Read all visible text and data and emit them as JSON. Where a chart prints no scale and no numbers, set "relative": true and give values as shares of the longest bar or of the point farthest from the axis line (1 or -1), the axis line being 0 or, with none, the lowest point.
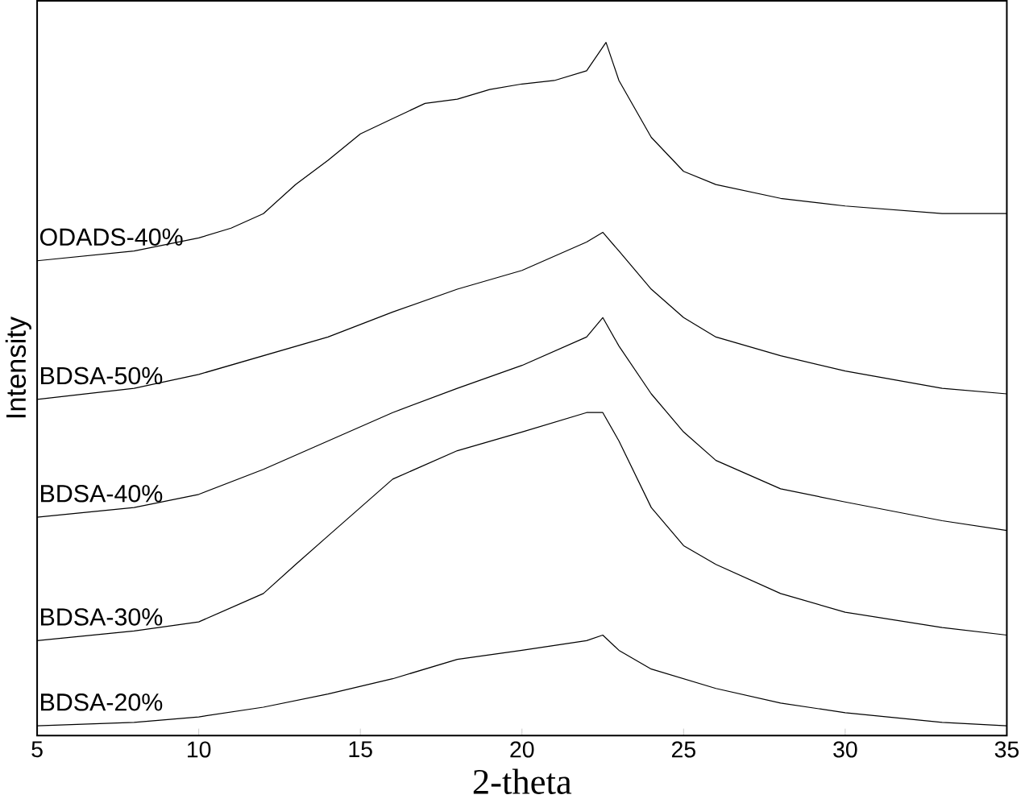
{
  "chart_data": {
    "type": "line",
    "xlabel": "2-theta",
    "ylabel": "Intensity",
    "relative": true,
    "xlim": [
      5,
      35
    ],
    "xticks": [
      5,
      10,
      15,
      20,
      25,
      30,
      35
    ],
    "legend": false,
    "marker": "none",
    "line_style": "solid",
    "series": [
      {
        "name": "ODADS-40%",
        "color": "#000000",
        "x": [
          5,
          8,
          10,
          11,
          12,
          13,
          14,
          15,
          16,
          17,
          18,
          19,
          20,
          21,
          22,
          22.6,
          23,
          24,
          25,
          26,
          28,
          30,
          33,
          35
        ],
        "values": [
          0.685,
          0.699,
          0.718,
          0.732,
          0.753,
          0.795,
          0.83,
          0.868,
          0.89,
          0.912,
          0.918,
          0.932,
          0.94,
          0.945,
          0.959,
          1,
          0.945,
          0.863,
          0.814,
          0.795,
          0.775,
          0.764,
          0.753,
          0.753
        ]
      },
      {
        "name": "BDSA-50%",
        "color": "#000000",
        "x": [
          5,
          8,
          10,
          12,
          14,
          16,
          18,
          20,
          22,
          22.5,
          23,
          24,
          25,
          26,
          28,
          30,
          33,
          35
        ],
        "values": [
          0.485,
          0.501,
          0.521,
          0.548,
          0.575,
          0.611,
          0.644,
          0.671,
          0.712,
          0.726,
          0.699,
          0.644,
          0.603,
          0.575,
          0.548,
          0.526,
          0.501,
          0.493
        ]
      },
      {
        "name": "BDSA-40%",
        "color": "#000000",
        "x": [
          5,
          8,
          10,
          12,
          14,
          16,
          18,
          20,
          22,
          22.5,
          23,
          24,
          25,
          26,
          28,
          30,
          33,
          35
        ],
        "values": [
          0.315,
          0.329,
          0.348,
          0.384,
          0.425,
          0.466,
          0.501,
          0.534,
          0.575,
          0.603,
          0.562,
          0.493,
          0.438,
          0.397,
          0.356,
          0.337,
          0.31,
          0.296
        ]
      },
      {
        "name": "BDSA-30%",
        "color": "#000000",
        "x": [
          5,
          8,
          10,
          12,
          13,
          14,
          15,
          16,
          18,
          20,
          21,
          22,
          22.5,
          23,
          24,
          25,
          26,
          28,
          30,
          33,
          35
        ],
        "values": [
          0.137,
          0.151,
          0.164,
          0.205,
          0.247,
          0.288,
          0.329,
          0.37,
          0.411,
          0.438,
          0.452,
          0.466,
          0.466,
          0.425,
          0.329,
          0.274,
          0.247,
          0.205,
          0.178,
          0.156,
          0.145
        ]
      },
      {
        "name": "BDSA-20%",
        "color": "#000000",
        "x": [
          5,
          8,
          10,
          12,
          14,
          16,
          18,
          20,
          22,
          22.5,
          23,
          24,
          26,
          28,
          30,
          33,
          35
        ],
        "values": [
          0.014,
          0.019,
          0.027,
          0.041,
          0.06,
          0.082,
          0.11,
          0.123,
          0.137,
          0.145,
          0.123,
          0.096,
          0.068,
          0.047,
          0.033,
          0.019,
          0.014
        ]
      }
    ]
  }
}
